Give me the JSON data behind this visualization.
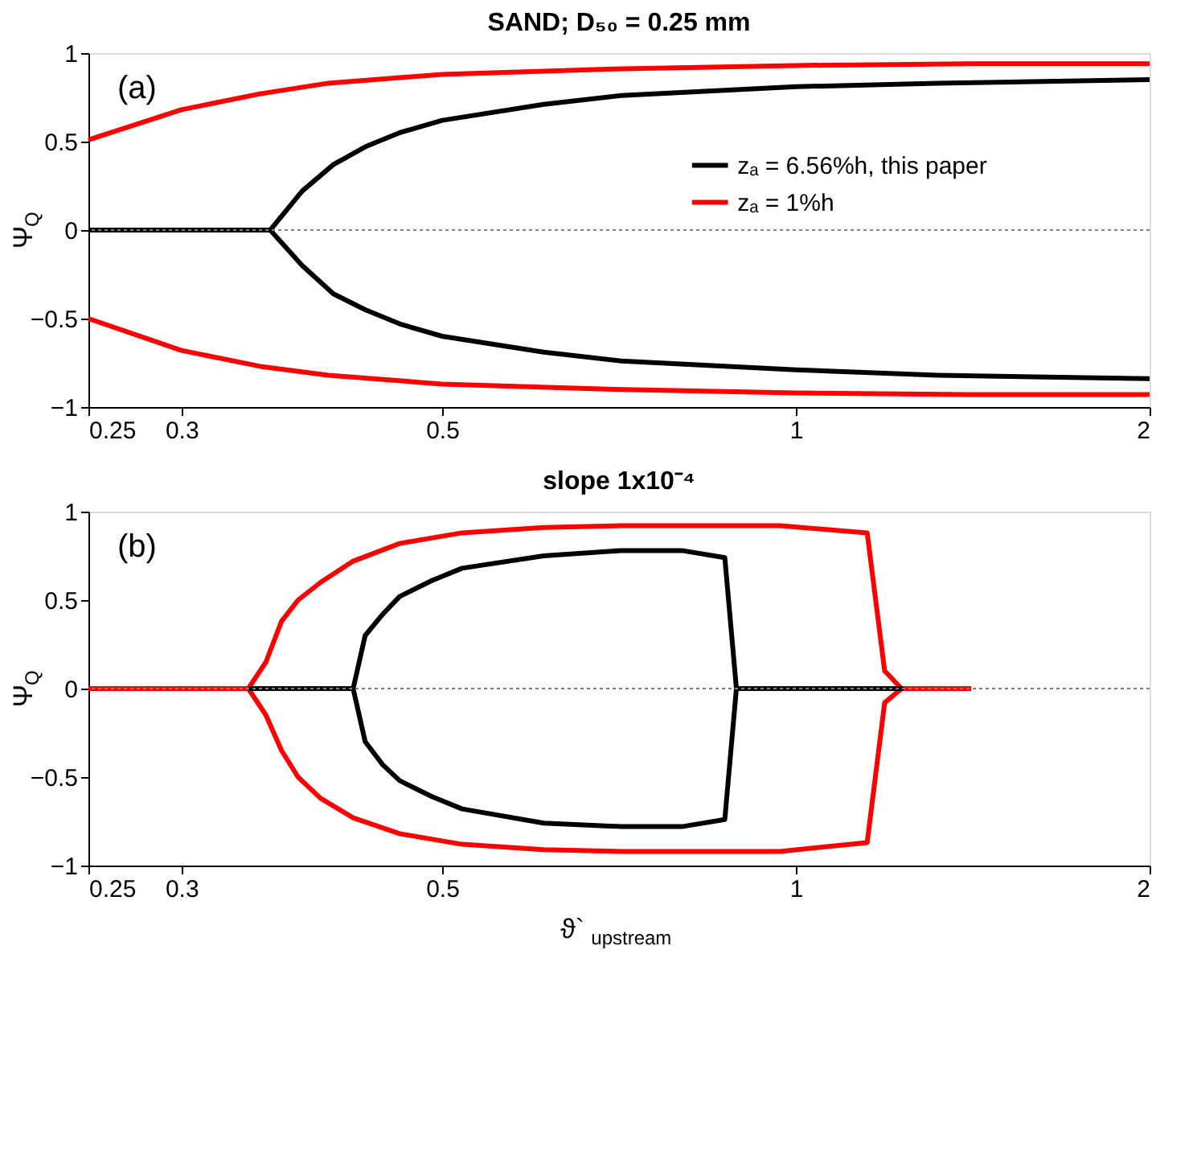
{
  "chart_data": [
    {
      "type": "line",
      "title": "SAND; D₅₀ = 0.25 mm",
      "ylabel": "Ψ$_{Q}$",
      "annotations": [
        "(a)"
      ],
      "log": "x",
      "xlim": [
        0.25,
        2
      ],
      "xticks": [
        0.25,
        0.3,
        0.5,
        1,
        2
      ],
      "ylim": [
        -1,
        1
      ],
      "yticks": [
        -1,
        -0.5,
        0,
        0.5,
        1
      ],
      "grid": false,
      "legend": "top right",
      "line_style": "solid",
      "marker": "none",
      "ref_lines": [
        {
          "axis": "y",
          "value": 0,
          "color": "#808080",
          "line_style": "dotted"
        }
      ],
      "series": [
        {
          "name": "zₐ = 6.56%h, this paper",
          "color": "#000000",
          "x": [
            0.357,
            0.38,
            0.404,
            0.43,
            0.46,
            0.5,
            0.61,
            0.71,
            1,
            1.32,
            2
          ],
          "values": [
            0,
            0.22,
            0.37,
            0.47,
            0.55,
            0.62,
            0.71,
            0.76,
            0.81,
            0.83,
            0.85
          ]
        },
        {
          "color": "#000000",
          "x": [
            0.357,
            0.38,
            0.404,
            0.43,
            0.46,
            0.5,
            0.61,
            0.71,
            1,
            1.32,
            2
          ],
          "values": [
            0,
            -0.2,
            -0.36,
            -0.45,
            -0.53,
            -0.6,
            -0.69,
            -0.74,
            -0.79,
            -0.82,
            -0.84
          ]
        },
        {
          "color": "#000000",
          "x": [
            0.25,
            0.357
          ],
          "values": [
            0,
            0
          ]
        },
        {
          "name": "zₐ = 1%h",
          "color": "#ff0000",
          "x": [
            0.25,
            0.3,
            0.35,
            0.4,
            0.5,
            0.7,
            1,
            1.4,
            2
          ],
          "values": [
            0.51,
            0.68,
            0.77,
            0.83,
            0.88,
            0.91,
            0.93,
            0.94,
            0.94
          ]
        },
        {
          "color": "#ff0000",
          "x": [
            0.25,
            0.3,
            0.35,
            0.4,
            0.5,
            0.7,
            1,
            1.4,
            2
          ],
          "values": [
            -0.5,
            -0.68,
            -0.77,
            -0.82,
            -0.87,
            -0.9,
            -0.92,
            -0.93,
            -0.93
          ]
        }
      ]
    },
    {
      "type": "line",
      "title": "slope 1x10⁻⁴",
      "xlabel": "ϑ`$_{upstream}$",
      "ylabel": "Ψ$_{Q}$",
      "annotations": [
        "(b)"
      ],
      "log": "x",
      "xlim": [
        0.25,
        2
      ],
      "xticks": [
        0.25,
        0.3,
        0.5,
        1,
        2
      ],
      "ylim": [
        -1,
        1
      ],
      "yticks": [
        -1,
        -0.5,
        0,
        0.5,
        1
      ],
      "grid": false,
      "line_style": "solid",
      "marker": "none",
      "ref_lines": [
        {
          "axis": "y",
          "value": 0,
          "color": "#808080",
          "line_style": "dotted"
        }
      ],
      "series": [
        {
          "color": "#ff0000",
          "x": [
            0.25,
            0.342
          ],
          "values": [
            0,
            0
          ]
        },
        {
          "color": "#ff0000",
          "x": [
            0.342,
            0.354,
            0.365,
            0.377,
            0.394,
            0.42,
            0.46,
            0.52,
            0.61,
            0.71,
            0.97,
            1.15,
            1.19,
            1.23,
            1.41
          ],
          "values": [
            0,
            0.15,
            0.38,
            0.5,
            0.6,
            0.72,
            0.82,
            0.88,
            0.91,
            0.92,
            0.92,
            0.88,
            0.1,
            0,
            0
          ]
        },
        {
          "color": "#ff0000",
          "x": [
            0.342,
            0.354,
            0.365,
            0.377,
            0.394,
            0.42,
            0.46,
            0.52,
            0.61,
            0.71,
            0.97,
            1.15,
            1.19,
            1.23
          ],
          "values": [
            0,
            -0.15,
            -0.35,
            -0.5,
            -0.62,
            -0.73,
            -0.82,
            -0.88,
            -0.91,
            -0.92,
            -0.92,
            -0.87,
            -0.08,
            0
          ]
        },
        {
          "color": "#000000",
          "x": [
            0.342,
            0.42,
            0.43,
            0.445,
            0.46,
            0.49,
            0.52,
            0.61,
            0.71,
            0.8,
            0.87,
            0.89,
            1.23,
            0.89,
            0.87,
            0.8,
            0.71,
            0.61,
            0.52,
            0.49,
            0.46,
            0.445,
            0.43,
            0.42
          ],
          "values": [
            0,
            0,
            -0.3,
            -0.43,
            -0.52,
            -0.61,
            -0.68,
            -0.76,
            -0.78,
            -0.78,
            -0.74,
            0,
            0,
            0,
            0.74,
            0.78,
            0.78,
            0.75,
            0.68,
            0.61,
            0.52,
            0.42,
            0.3,
            0
          ]
        }
      ]
    }
  ]
}
